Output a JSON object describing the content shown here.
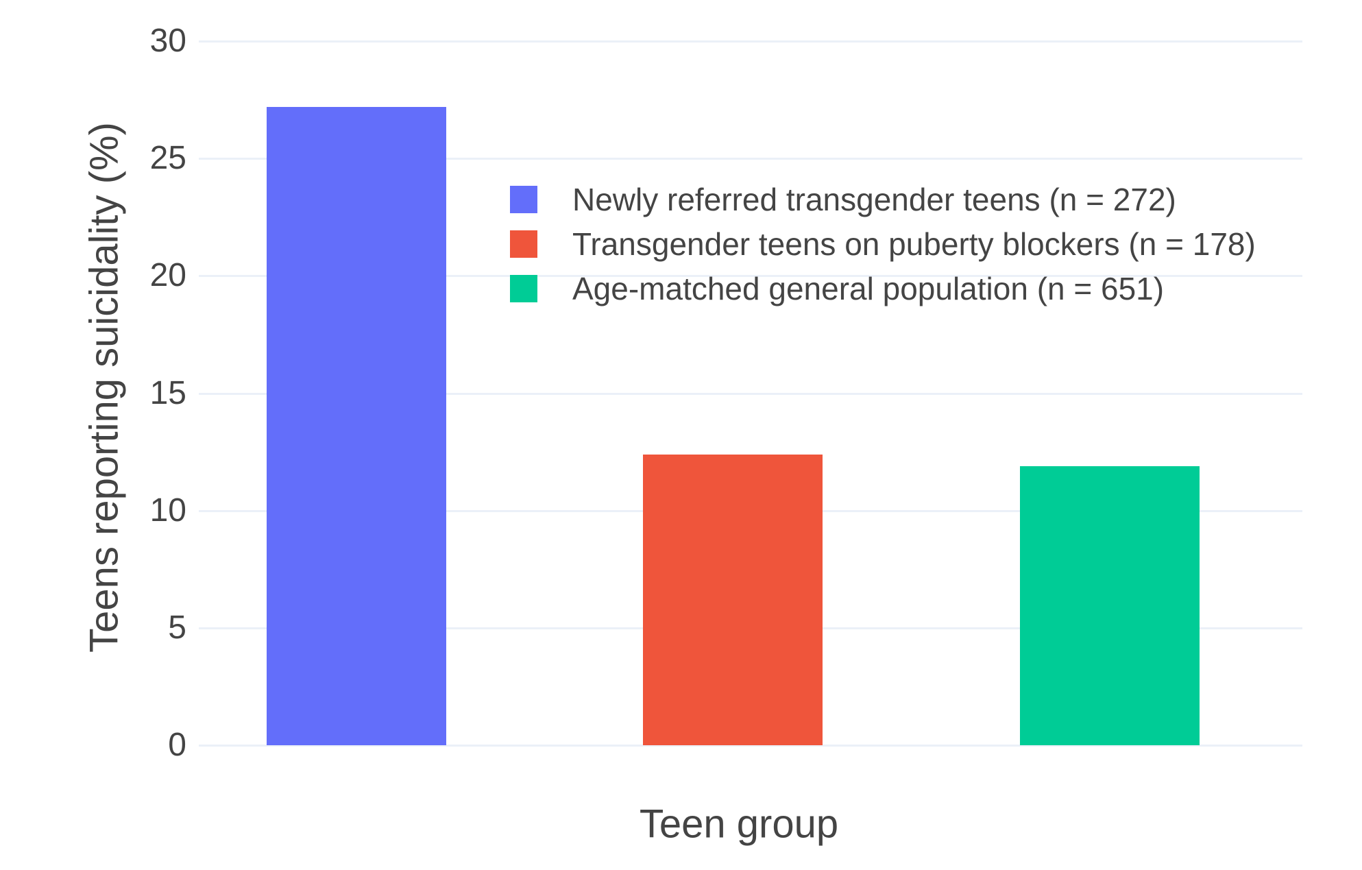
{
  "chart_data": {
    "type": "bar",
    "title": "",
    "xlabel": "Teen group",
    "ylabel": "Teens reporting suicidality (%)",
    "categories": [
      "Newly referred transgender teens (n = 272)",
      "Transgender teens on puberty blockers (n = 178)",
      "Age-matched general population (n = 651)"
    ],
    "values": [
      27.2,
      12.4,
      11.9
    ],
    "bar_colors": [
      "#636EFA",
      "#EF553B",
      "#00CC96"
    ],
    "ylim": [
      0,
      30
    ],
    "yticks": [
      "0",
      "5",
      "10",
      "15",
      "20",
      "25",
      "30"
    ],
    "grid": "on",
    "legend_position": "inside top-center",
    "legend": [
      {
        "label": "Newly referred transgender teens (n = 272)",
        "color": "#636EFA"
      },
      {
        "label": "Transgender teens on puberty blockers (n = 178)",
        "color": "#EF553B"
      },
      {
        "label": "Age-matched general population (n = 651)",
        "color": "#00CC96"
      }
    ]
  },
  "style": {
    "grid_color": "#EBF0F8",
    "text_color": "#444444",
    "background_color": "#FFFFFF"
  }
}
